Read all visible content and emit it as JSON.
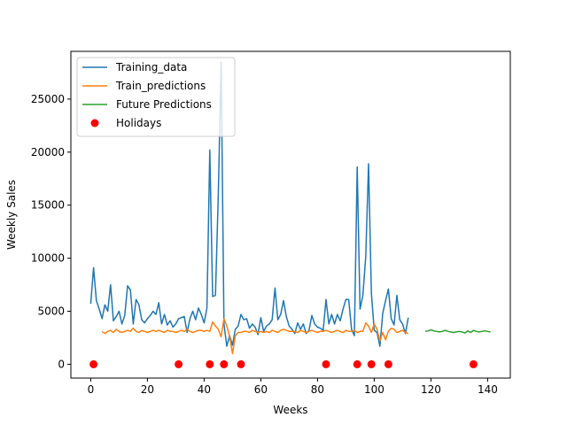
{
  "chart_data": {
    "type": "line",
    "xlabel": "Weeks",
    "ylabel": "Weekly Sales",
    "xlim": [
      -7,
      148
    ],
    "ylim": [
      -1300,
      29500
    ],
    "xticks": [
      0,
      20,
      40,
      60,
      80,
      100,
      120,
      140
    ],
    "yticks": [
      0,
      5000,
      10000,
      15000,
      20000,
      25000
    ],
    "grid": false,
    "legend_position": "top-left",
    "series": [
      {
        "name": "Training_data",
        "kind": "line",
        "color": "#1f77b4",
        "x": [
          0,
          1,
          2,
          3,
          4,
          5,
          6,
          7,
          8,
          9,
          10,
          11,
          12,
          13,
          14,
          15,
          16,
          17,
          18,
          19,
          20,
          21,
          22,
          23,
          24,
          25,
          26,
          27,
          28,
          29,
          30,
          31,
          32,
          33,
          34,
          35,
          36,
          37,
          38,
          39,
          40,
          41,
          42,
          43,
          44,
          45,
          46,
          47,
          48,
          49,
          50,
          51,
          52,
          53,
          54,
          55,
          56,
          57,
          58,
          59,
          60,
          61,
          62,
          63,
          64,
          65,
          66,
          67,
          68,
          69,
          70,
          71,
          72,
          73,
          74,
          75,
          76,
          77,
          78,
          79,
          80,
          81,
          82,
          83,
          84,
          85,
          86,
          87,
          88,
          89,
          90,
          91,
          92,
          93,
          94,
          95,
          96,
          97,
          98,
          99,
          100,
          101,
          102,
          103,
          104,
          105,
          106,
          107,
          108,
          109,
          110,
          111,
          112
        ],
        "y": [
          5700,
          9100,
          6000,
          5200,
          4300,
          5600,
          5000,
          7500,
          4100,
          4500,
          5000,
          3800,
          4600,
          7400,
          7000,
          3800,
          6100,
          5600,
          4200,
          3900,
          4300,
          4600,
          5000,
          4700,
          5800,
          3800,
          4700,
          3700,
          4100,
          3500,
          3800,
          4300,
          4400,
          4500,
          3000,
          4300,
          5000,
          4200,
          5300,
          4700,
          3900,
          5300,
          20200,
          6400,
          6500,
          16000,
          28500,
          3800,
          1700,
          2700,
          1800,
          3300,
          3600,
          4700,
          4200,
          4300,
          3400,
          3800,
          3500,
          2800,
          4400,
          3100,
          3600,
          3800,
          4200,
          7200,
          4200,
          4700,
          6000,
          4500,
          3600,
          3300,
          2900,
          3900,
          3300,
          3800,
          2900,
          3200,
          4600,
          3800,
          3500,
          3400,
          3200,
          6100,
          3800,
          4700,
          3800,
          4700,
          4100,
          5200,
          6100,
          6100,
          3300,
          2700,
          18600,
          5200,
          6500,
          10100,
          18900,
          6700,
          3200,
          3000,
          1700,
          4800,
          6000,
          7100,
          4300,
          3700,
          6500,
          4200,
          3800,
          2900,
          4400
        ]
      },
      {
        "name": "Train_predictions",
        "kind": "line",
        "color": "#ff7f0e",
        "x": [
          4,
          5,
          6,
          7,
          8,
          9,
          10,
          11,
          12,
          13,
          14,
          15,
          16,
          17,
          18,
          19,
          20,
          21,
          22,
          23,
          24,
          25,
          26,
          27,
          28,
          29,
          30,
          31,
          32,
          33,
          34,
          35,
          36,
          37,
          38,
          39,
          40,
          41,
          42,
          43,
          44,
          45,
          46,
          47,
          48,
          49,
          50,
          51,
          52,
          53,
          54,
          55,
          56,
          57,
          58,
          59,
          60,
          61,
          62,
          63,
          64,
          65,
          66,
          67,
          68,
          69,
          70,
          71,
          72,
          73,
          74,
          75,
          76,
          77,
          78,
          79,
          80,
          81,
          82,
          83,
          84,
          85,
          86,
          87,
          88,
          89,
          90,
          91,
          92,
          93,
          94,
          95,
          96,
          97,
          98,
          99,
          100,
          101,
          102,
          103,
          104,
          105,
          106,
          107,
          108,
          109,
          110,
          111,
          112
        ],
        "y": [
          3100,
          2900,
          3100,
          3200,
          3000,
          3300,
          3100,
          3000,
          3100,
          3200,
          3100,
          3400,
          3100,
          3000,
          3200,
          3100,
          3000,
          3100,
          3200,
          3100,
          3200,
          3100,
          3000,
          3200,
          3100,
          3100,
          3000,
          3100,
          3200,
          3100,
          3300,
          3100,
          3000,
          3100,
          3200,
          3200,
          3100,
          3200,
          3100,
          4000,
          3600,
          3300,
          2600,
          4300,
          3600,
          2600,
          1000,
          2700,
          3000,
          3000,
          3100,
          3100,
          3000,
          3200,
          3100,
          3000,
          3100,
          3000,
          3100,
          3000,
          3200,
          3100,
          3000,
          3200,
          3300,
          3200,
          3100,
          3100,
          3100,
          3000,
          3200,
          3100,
          3000,
          3100,
          3200,
          3100,
          3000,
          3100,
          3100,
          3200,
          3100,
          3000,
          3100,
          3200,
          3100,
          3000,
          3200,
          3100,
          3100,
          3200,
          3000,
          3100,
          3100,
          3900,
          3600,
          3000,
          3800,
          3300,
          2200,
          3000,
          2300,
          3100,
          3400,
          3300,
          3000,
          3100,
          3200,
          3000,
          2900
        ]
      },
      {
        "name": "Future Predictions",
        "kind": "line",
        "color": "#2ca02c",
        "x": [
          118,
          119,
          120,
          121,
          122,
          123,
          124,
          125,
          126,
          127,
          128,
          129,
          130,
          131,
          132,
          133,
          134,
          135,
          136,
          137,
          138,
          139,
          140,
          141
        ],
        "y": [
          3100,
          3150,
          3250,
          3150,
          3100,
          3050,
          3100,
          3200,
          3100,
          3050,
          3000,
          3050,
          3100,
          3050,
          2950,
          3150,
          3000,
          3200,
          3100,
          3050,
          3100,
          3150,
          3100,
          3050
        ]
      },
      {
        "name": "Holidays",
        "kind": "scatter",
        "color": "#ff0000",
        "x": [
          1,
          31,
          42,
          47,
          53,
          83,
          94,
          99,
          105,
          135
        ],
        "y": [
          0,
          0,
          0,
          0,
          0,
          0,
          0,
          0,
          0,
          0
        ]
      }
    ]
  }
}
